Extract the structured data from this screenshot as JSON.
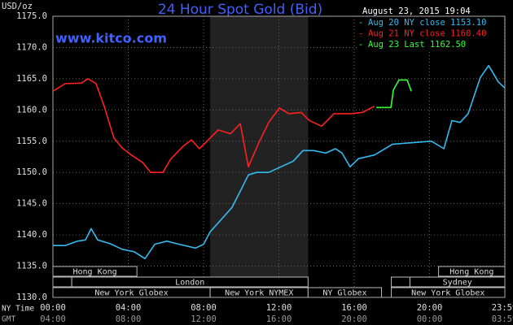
{
  "chart_data": {
    "type": "line",
    "title": "24 Hour Spot Gold (Bid)",
    "website": "www.kitco.com",
    "timestamp": "August 23, 2015 19:04",
    "y_axis_label": "USD/oz",
    "x_axis_label": "NY Time",
    "x2_axis_label": "GMT",
    "ylim": [
      1130,
      1175
    ],
    "yticks": [
      {
        "value": 1130,
        "label": "1130.0"
      },
      {
        "value": 1135,
        "label": "1135.0"
      },
      {
        "value": 1140,
        "label": "1140.0"
      },
      {
        "value": 1145,
        "label": "1145.0"
      },
      {
        "value": 1150,
        "label": "1150.0"
      },
      {
        "value": 1155,
        "label": "1155.0"
      },
      {
        "value": 1160,
        "label": "1160.0"
      },
      {
        "value": 1165,
        "label": "1165.0"
      },
      {
        "value": 1170,
        "label": "1170.0"
      },
      {
        "value": 1175,
        "label": "1175.0"
      }
    ],
    "xlim": [
      0,
      24
    ],
    "xticks": [
      {
        "value": 0,
        "label": "00:00"
      },
      {
        "value": 4,
        "label": "04:00"
      },
      {
        "value": 8,
        "label": "08:00"
      },
      {
        "value": 12,
        "label": "12:00"
      },
      {
        "value": 16,
        "label": "16:00"
      },
      {
        "value": 20,
        "label": "20:00"
      },
      {
        "value": 23.98,
        "label": "23:59"
      }
    ],
    "xtick_labels_gmt": [
      "04:00",
      "08:00",
      "12:00",
      "16:00",
      "20:00",
      "00:00",
      "03:59"
    ],
    "grid": true,
    "shaded_x": [
      8.35,
      13.55
    ],
    "sessions": [
      {
        "row": 0,
        "start": 0,
        "end": 4.46,
        "label": "Hong Kong"
      },
      {
        "row": 0,
        "start": 20.48,
        "end": 24,
        "label": "Hong Kong"
      },
      {
        "row": 1,
        "start": 0,
        "end": 1.0,
        "label": null
      },
      {
        "row": 1,
        "start": 1.0,
        "end": 13.55,
        "label": "London"
      },
      {
        "row": 1,
        "start": 17.97,
        "end": 18.96,
        "label": null
      },
      {
        "row": 1,
        "start": 18.96,
        "end": 24,
        "label": "Sydney"
      },
      {
        "row": 2,
        "start": 0,
        "end": 8.35,
        "label": "New York Globex"
      },
      {
        "row": 2,
        "start": 8.35,
        "end": 13.55,
        "label": "New York NYMEX"
      },
      {
        "row": 2,
        "start": 13.55,
        "end": 17.45,
        "label": "NY Globex"
      },
      {
        "row": 2,
        "start": 17.97,
        "end": 24,
        "label": "New York Globex"
      }
    ],
    "series": [
      {
        "name": "Aug 20 NY close 1153.10",
        "color": "#33bbf0",
        "x": [
          0,
          0.65,
          1.3,
          1.73,
          2.03,
          2.38,
          3.03,
          3.68,
          4.32,
          4.89,
          5.41,
          6.05,
          6.7,
          7.57,
          8.0,
          8.35,
          8.86,
          9.51,
          9.95,
          10.38,
          10.81,
          11.46,
          12.11,
          12.76,
          13.28,
          13.84,
          14.49,
          15.0,
          15.35,
          15.78,
          16.22,
          17.08,
          18.03,
          18.81,
          20.11,
          20.76,
          21.19,
          21.62,
          22.05,
          22.7,
          23.14,
          23.65,
          24.0
        ],
        "values": [
          1138.3,
          1138.3,
          1139.0,
          1139.2,
          1141.0,
          1139.2,
          1138.6,
          1137.7,
          1137.3,
          1136.2,
          1138.5,
          1139.0,
          1138.5,
          1137.9,
          1138.5,
          1140.5,
          1142.2,
          1144.4,
          1147.0,
          1149.6,
          1150.0,
          1150.0,
          1150.9,
          1151.8,
          1153.5,
          1153.5,
          1153.1,
          1153.8,
          1153.1,
          1150.9,
          1152.2,
          1152.8,
          1154.5,
          1154.7,
          1155.0,
          1153.8,
          1158.3,
          1158.0,
          1159.4,
          1165.2,
          1167.1,
          1164.5,
          1163.5
        ]
      },
      {
        "name": "Aug 21 NY close 1160.40",
        "color": "#ff2020",
        "x": [
          0,
          0.65,
          1.51,
          1.86,
          2.29,
          2.72,
          3.24,
          3.68,
          4.11,
          4.76,
          5.19,
          5.84,
          6.27,
          6.92,
          7.35,
          7.78,
          8.35,
          8.78,
          9.43,
          9.95,
          10.38,
          10.94,
          11.46,
          12.02,
          12.54,
          13.19,
          13.62,
          14.27,
          14.92,
          15.78,
          16.43,
          17.08
        ],
        "values": [
          1163.0,
          1164.2,
          1164.3,
          1165.0,
          1164.2,
          1160.6,
          1155.5,
          1153.9,
          1152.9,
          1151.6,
          1150.0,
          1150.0,
          1152.2,
          1154.2,
          1155.2,
          1153.8,
          1155.5,
          1156.8,
          1156.2,
          1157.8,
          1150.9,
          1154.8,
          1158.0,
          1160.3,
          1159.4,
          1159.6,
          1158.3,
          1157.4,
          1159.4,
          1159.4,
          1159.6,
          1160.6
        ]
      },
      {
        "name": "Aug 23 Last 1162.50",
        "color": "#33ff33",
        "x": [
          17.17,
          17.95,
          18.08,
          18.38,
          18.81,
          19.03
        ],
        "values": [
          1160.4,
          1160.4,
          1163.2,
          1164.8,
          1164.8,
          1163.0
        ]
      }
    ]
  }
}
